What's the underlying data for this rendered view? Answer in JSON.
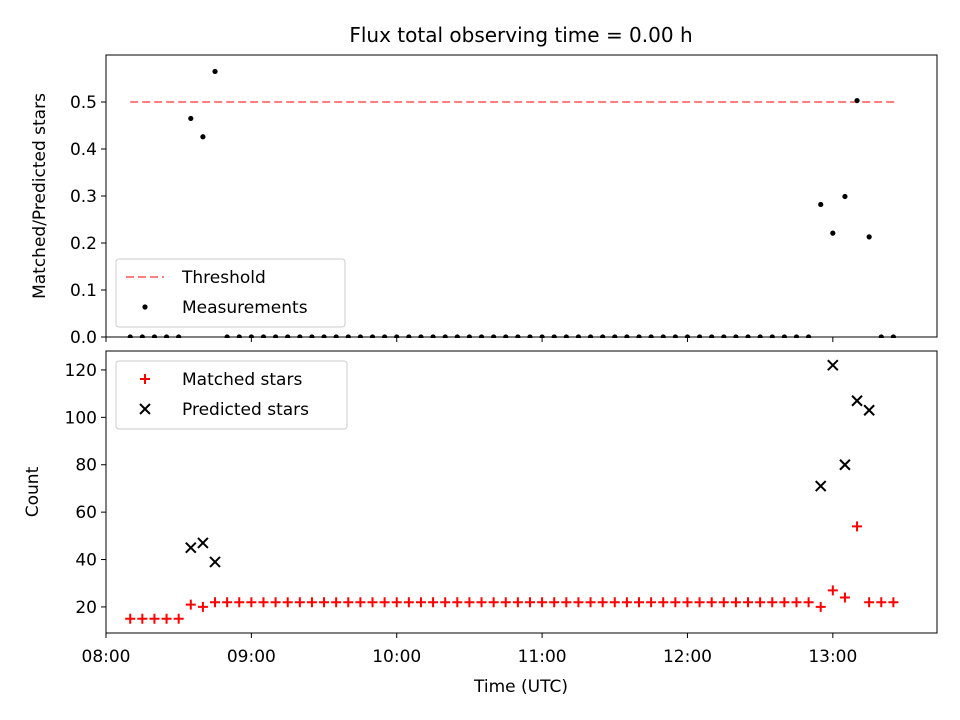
{
  "chart_data": {
    "title": "Flux total observing time = 0.00 h",
    "xlabel": "Time (UTC)",
    "x_ticks": [
      "08:00",
      "09:00",
      "10:00",
      "11:00",
      "12:00",
      "13:00"
    ],
    "xlim": [
      "08:00",
      "13:43"
    ],
    "panels": [
      {
        "type": "scatter",
        "ylabel": "Matched/Predicted stars",
        "ylim": [
          0,
          0.6
        ],
        "y_ticks": [
          0.0,
          0.1,
          0.2,
          0.3,
          0.4,
          0.5
        ],
        "legend_position": "lower-left",
        "series": [
          {
            "name": "Threshold",
            "kind": "dashed-line",
            "color": "#ff7f7f",
            "points": [
              [
                "08:10",
                0.5
              ],
              [
                "13:27",
                0.5
              ]
            ]
          },
          {
            "name": "Measurements",
            "kind": "dot",
            "color": "#000000",
            "points": [
              [
                "08:10",
                0
              ],
              [
                "08:15",
                0
              ],
              [
                "08:20",
                0
              ],
              [
                "08:25",
                0
              ],
              [
                "08:30",
                0
              ],
              [
                "08:35",
                0.465
              ],
              [
                "08:40",
                0.426
              ],
              [
                "08:45",
                0.565
              ],
              [
                "08:50",
                0
              ],
              [
                "08:55",
                0
              ],
              [
                "09:00",
                0
              ],
              [
                "09:05",
                0
              ],
              [
                "09:10",
                0
              ],
              [
                "09:15",
                0
              ],
              [
                "09:20",
                0
              ],
              [
                "09:25",
                0
              ],
              [
                "09:30",
                0
              ],
              [
                "09:35",
                0
              ],
              [
                "09:40",
                0
              ],
              [
                "09:45",
                0
              ],
              [
                "09:50",
                0
              ],
              [
                "09:55",
                0
              ],
              [
                "10:00",
                0
              ],
              [
                "10:05",
                0
              ],
              [
                "10:10",
                0
              ],
              [
                "10:15",
                0
              ],
              [
                "10:20",
                0
              ],
              [
                "10:25",
                0
              ],
              [
                "10:30",
                0
              ],
              [
                "10:35",
                0
              ],
              [
                "10:40",
                0
              ],
              [
                "10:45",
                0
              ],
              [
                "10:50",
                0
              ],
              [
                "10:55",
                0
              ],
              [
                "11:00",
                0
              ],
              [
                "11:05",
                0
              ],
              [
                "11:10",
                0
              ],
              [
                "11:15",
                0
              ],
              [
                "11:20",
                0
              ],
              [
                "11:25",
                0
              ],
              [
                "11:30",
                0
              ],
              [
                "11:35",
                0
              ],
              [
                "11:40",
                0
              ],
              [
                "11:45",
                0
              ],
              [
                "11:50",
                0
              ],
              [
                "11:55",
                0
              ],
              [
                "12:00",
                0
              ],
              [
                "12:05",
                0
              ],
              [
                "12:10",
                0
              ],
              [
                "12:15",
                0
              ],
              [
                "12:20",
                0
              ],
              [
                "12:25",
                0
              ],
              [
                "12:30",
                0
              ],
              [
                "12:35",
                0
              ],
              [
                "12:40",
                0
              ],
              [
                "12:45",
                0
              ],
              [
                "12:50",
                0
              ],
              [
                "12:55",
                0.282
              ],
              [
                "13:00",
                0.221
              ],
              [
                "13:05",
                0.299
              ],
              [
                "13:10",
                0.503
              ],
              [
                "13:15",
                0.213
              ],
              [
                "13:20",
                0
              ],
              [
                "13:25",
                0
              ]
            ]
          }
        ]
      },
      {
        "type": "scatter",
        "ylabel": "Count",
        "ylim": [
          9,
          128
        ],
        "y_ticks": [
          20,
          40,
          60,
          80,
          100,
          120
        ],
        "legend_position": "upper-left",
        "series": [
          {
            "name": "Matched stars",
            "marker": "plus",
            "color": "#ff0000",
            "points": [
              [
                "08:10",
                15
              ],
              [
                "08:15",
                15
              ],
              [
                "08:20",
                15
              ],
              [
                "08:25",
                15
              ],
              [
                "08:30",
                15
              ],
              [
                "08:35",
                21
              ],
              [
                "08:40",
                20
              ],
              [
                "08:45",
                22
              ],
              [
                "08:50",
                22
              ],
              [
                "08:55",
                22
              ],
              [
                "09:00",
                22
              ],
              [
                "09:05",
                22
              ],
              [
                "09:10",
                22
              ],
              [
                "09:15",
                22
              ],
              [
                "09:20",
                22
              ],
              [
                "09:25",
                22
              ],
              [
                "09:30",
                22
              ],
              [
                "09:35",
                22
              ],
              [
                "09:40",
                22
              ],
              [
                "09:45",
                22
              ],
              [
                "09:50",
                22
              ],
              [
                "09:55",
                22
              ],
              [
                "10:00",
                22
              ],
              [
                "10:05",
                22
              ],
              [
                "10:10",
                22
              ],
              [
                "10:15",
                22
              ],
              [
                "10:20",
                22
              ],
              [
                "10:25",
                22
              ],
              [
                "10:30",
                22
              ],
              [
                "10:35",
                22
              ],
              [
                "10:40",
                22
              ],
              [
                "10:45",
                22
              ],
              [
                "10:50",
                22
              ],
              [
                "10:55",
                22
              ],
              [
                "11:00",
                22
              ],
              [
                "11:05",
                22
              ],
              [
                "11:10",
                22
              ],
              [
                "11:15",
                22
              ],
              [
                "11:20",
                22
              ],
              [
                "11:25",
                22
              ],
              [
                "11:30",
                22
              ],
              [
                "11:35",
                22
              ],
              [
                "11:40",
                22
              ],
              [
                "11:45",
                22
              ],
              [
                "11:50",
                22
              ],
              [
                "11:55",
                22
              ],
              [
                "12:00",
                22
              ],
              [
                "12:05",
                22
              ],
              [
                "12:10",
                22
              ],
              [
                "12:15",
                22
              ],
              [
                "12:20",
                22
              ],
              [
                "12:25",
                22
              ],
              [
                "12:30",
                22
              ],
              [
                "12:35",
                22
              ],
              [
                "12:40",
                22
              ],
              [
                "12:45",
                22
              ],
              [
                "12:50",
                22
              ],
              [
                "12:55",
                20
              ],
              [
                "13:00",
                27
              ],
              [
                "13:05",
                24
              ],
              [
                "13:10",
                54
              ],
              [
                "13:15",
                22
              ],
              [
                "13:20",
                22
              ],
              [
                "13:25",
                22
              ]
            ]
          },
          {
            "name": "Predicted stars",
            "marker": "x",
            "color": "#000000",
            "points": [
              [
                "08:35",
                45
              ],
              [
                "08:40",
                47
              ],
              [
                "08:45",
                39
              ],
              [
                "12:55",
                71
              ],
              [
                "13:00",
                122
              ],
              [
                "13:05",
                80
              ],
              [
                "13:10",
                107
              ],
              [
                "13:15",
                103
              ]
            ]
          }
        ]
      }
    ]
  }
}
